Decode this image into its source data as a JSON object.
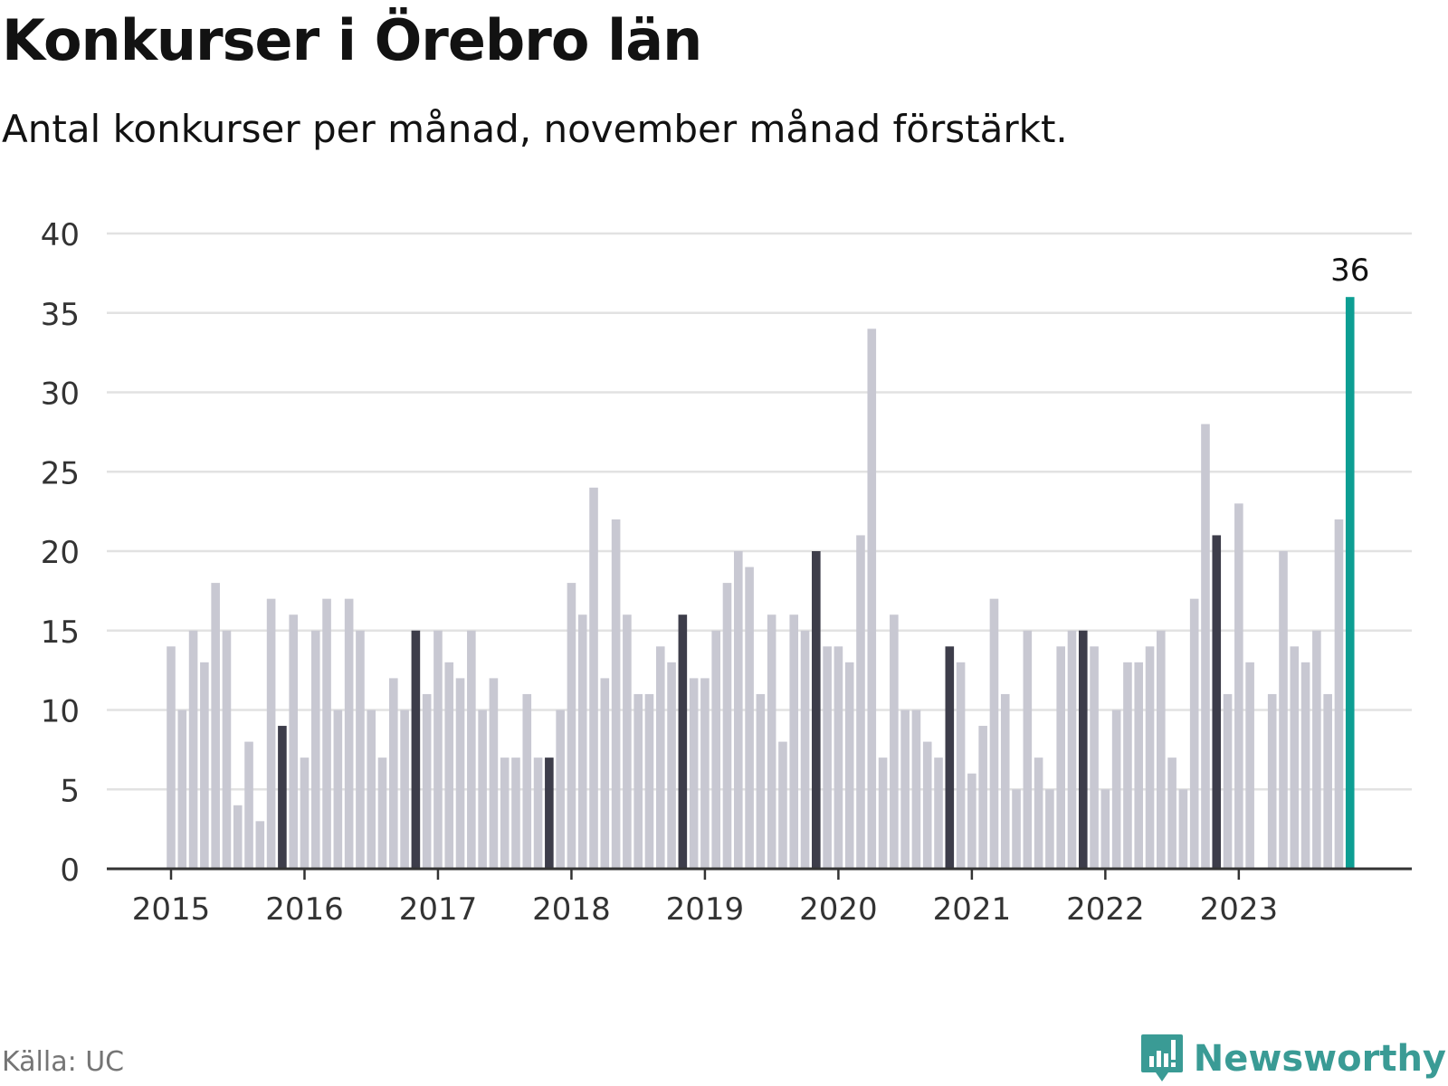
{
  "title": "Konkurser i Örebro län",
  "subtitle": "Antal konkurser per månad, november månad förstärkt.",
  "source": "Källa: UC",
  "brand": {
    "name": "Newsworthy",
    "icon": "newsworthy-logo-icon"
  },
  "colors": {
    "bar": "#c8c8d2",
    "november": "#3d3d4a",
    "highlight": "#0d9e93",
    "grid": "#e2e2e2",
    "axis": "#333333",
    "text": "#121212",
    "muted": "#757575",
    "brand": "#3a9b95"
  },
  "chart_data": {
    "type": "bar",
    "start": "2015-01",
    "x_tick_labels": [
      "2015",
      "2016",
      "2017",
      "2018",
      "2019",
      "2020",
      "2021",
      "2022",
      "2023"
    ],
    "y_ticks": [
      0,
      5,
      10,
      15,
      20,
      25,
      30,
      35,
      40
    ],
    "ylim": [
      0,
      40
    ],
    "grid": true,
    "highlight_label": "36",
    "values": [
      14,
      10,
      15,
      13,
      18,
      15,
      4,
      8,
      3,
      17,
      9,
      16,
      7,
      15,
      17,
      10,
      17,
      15,
      10,
      7,
      12,
      10,
      15,
      11,
      15,
      13,
      12,
      15,
      10,
      12,
      7,
      7,
      11,
      7,
      7,
      10,
      18,
      16,
      24,
      12,
      22,
      16,
      11,
      11,
      14,
      13,
      16,
      12,
      12,
      15,
      18,
      20,
      19,
      11,
      16,
      8,
      16,
      15,
      20,
      14,
      14,
      13,
      21,
      34,
      7,
      16,
      10,
      10,
      8,
      7,
      14,
      13,
      6,
      9,
      17,
      11,
      5,
      15,
      7,
      5,
      14,
      15,
      15,
      14,
      5,
      10,
      13,
      13,
      14,
      15,
      7,
      5,
      17,
      28,
      21,
      11,
      23,
      13,
      0,
      11,
      20,
      14,
      13,
      15,
      11,
      22,
      36
    ],
    "highlight_month_index": 10
  }
}
